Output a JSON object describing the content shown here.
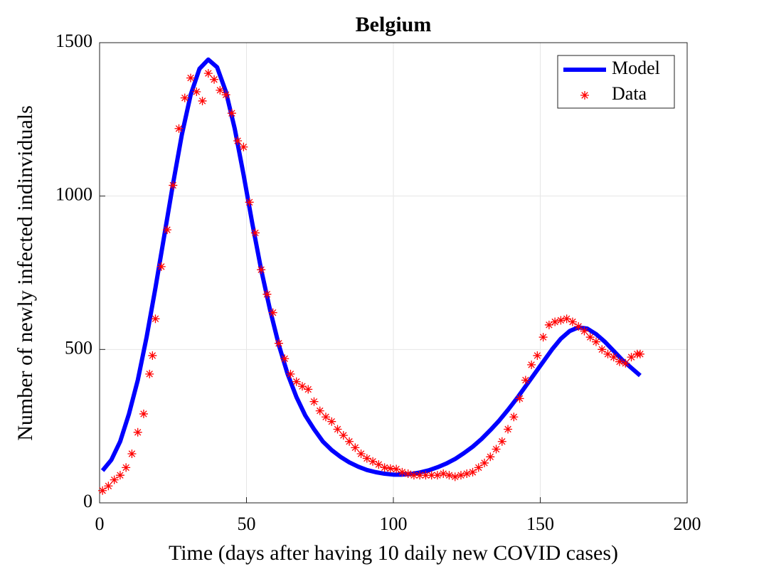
{
  "chart_data": {
    "type": "line",
    "title": "Belgium",
    "xlabel": "Time (days after having 10 daily new COVID cases)",
    "ylabel": "Number of newly infected indinviduals",
    "xlim": [
      0,
      200
    ],
    "xticks": [
      0,
      50,
      100,
      150,
      200
    ],
    "ylim": [
      0,
      1500
    ],
    "yticks": [
      0,
      500,
      1000,
      1500
    ],
    "grid": true,
    "legend": "upper right",
    "series": [
      {
        "name": "Model",
        "color": "#0000ff",
        "style": "line",
        "x": [
          1,
          4,
          7,
          10,
          13,
          16,
          19,
          22,
          25,
          28,
          31,
          34,
          37,
          40,
          43,
          46,
          49,
          52,
          55,
          58,
          61,
          64,
          67,
          70,
          73,
          76,
          79,
          82,
          85,
          88,
          91,
          94,
          97,
          100,
          103,
          106,
          109,
          112,
          115,
          118,
          121,
          124,
          127,
          130,
          133,
          136,
          139,
          142,
          145,
          148,
          151,
          154,
          157,
          160,
          163,
          166,
          169,
          172,
          175,
          178,
          181,
          184
        ],
        "values": [
          105,
          140,
          200,
          290,
          400,
          540,
          700,
          870,
          1040,
          1200,
          1330,
          1415,
          1445,
          1420,
          1340,
          1220,
          1070,
          910,
          760,
          630,
          515,
          420,
          345,
          285,
          240,
          200,
          172,
          150,
          132,
          118,
          107,
          100,
          95,
          92,
          92,
          94,
          99,
          106,
          116,
          128,
          143,
          162,
          183,
          208,
          237,
          268,
          303,
          340,
          380,
          420,
          460,
          500,
          535,
          560,
          572,
          568,
          550,
          525,
          495,
          465,
          440,
          415
        ]
      },
      {
        "name": "Data",
        "color": "#ff0000",
        "style": "marker",
        "x": [
          1,
          3,
          5,
          7,
          9,
          11,
          13,
          15,
          17,
          18,
          19,
          21,
          23,
          25,
          27,
          29,
          31,
          33,
          35,
          37,
          39,
          41,
          43,
          45,
          47,
          49,
          51,
          53,
          55,
          57,
          59,
          61,
          63,
          65,
          67,
          69,
          71,
          73,
          75,
          77,
          79,
          81,
          83,
          85,
          87,
          89,
          91,
          93,
          95,
          97,
          99,
          101,
          103,
          105,
          107,
          109,
          111,
          113,
          115,
          117,
          119,
          121,
          123,
          125,
          127,
          129,
          131,
          133,
          135,
          137,
          139,
          141,
          143,
          145,
          147,
          149,
          151,
          153,
          155,
          157,
          159,
          161,
          163,
          165,
          167,
          169,
          171,
          173,
          175,
          177,
          179,
          181,
          183,
          184
        ],
        "values": [
          40,
          55,
          75,
          90,
          115,
          160,
          230,
          290,
          420,
          480,
          600,
          770,
          890,
          1035,
          1220,
          1320,
          1385,
          1340,
          1310,
          1400,
          1380,
          1345,
          1330,
          1270,
          1180,
          1160,
          980,
          880,
          760,
          680,
          620,
          520,
          470,
          420,
          395,
          380,
          370,
          330,
          300,
          280,
          265,
          240,
          220,
          200,
          180,
          160,
          145,
          135,
          125,
          115,
          112,
          110,
          100,
          95,
          90,
          90,
          90,
          90,
          90,
          95,
          90,
          85,
          90,
          95,
          100,
          115,
          130,
          150,
          175,
          200,
          240,
          280,
          340,
          400,
          450,
          480,
          540,
          580,
          590,
          595,
          600,
          590,
          575,
          560,
          540,
          525,
          500,
          485,
          475,
          460,
          455,
          475,
          485,
          485
        ]
      }
    ]
  }
}
